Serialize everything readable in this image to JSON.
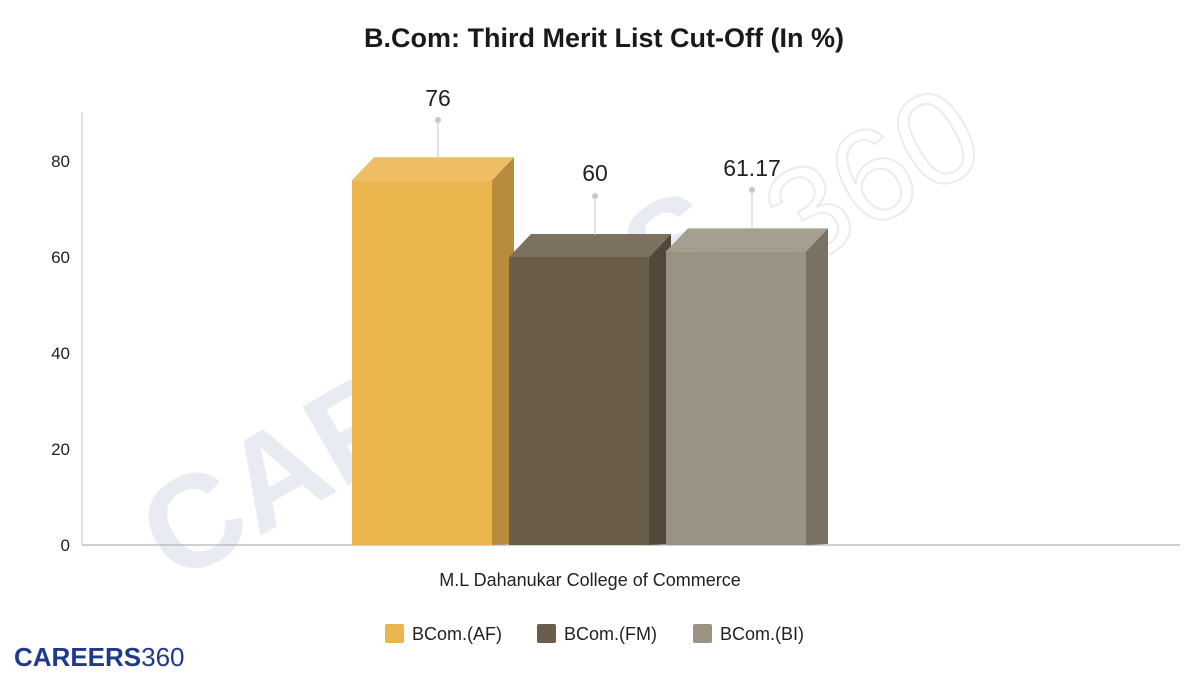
{
  "chart_data": {
    "type": "bar",
    "title": "B.Com: Third Merit List Cut-Off (In %)",
    "categories": [
      "M.L Dahanukar College of Commerce"
    ],
    "series": [
      {
        "name": "BCom.(AF)",
        "values": [
          76
        ],
        "label": "76",
        "color": "#EBB54E"
      },
      {
        "name": "BCom.(FM)",
        "values": [
          60
        ],
        "label": "60",
        "color": "#6A5D4A"
      },
      {
        "name": "BCom.(BI)",
        "values": [
          61.17
        ],
        "label": "61.17",
        "color": "#9A9282"
      }
    ],
    "ylim": [
      0,
      90
    ],
    "yticks": [
      "0",
      "20",
      "40",
      "60",
      "80"
    ],
    "xlabel": "",
    "ylabel": "",
    "legend_position": "bottom",
    "style": "3d"
  },
  "watermark": {
    "text": "CAREERS",
    "number": "360"
  },
  "logo": {
    "brand": "CAREERS",
    "number": "360"
  }
}
